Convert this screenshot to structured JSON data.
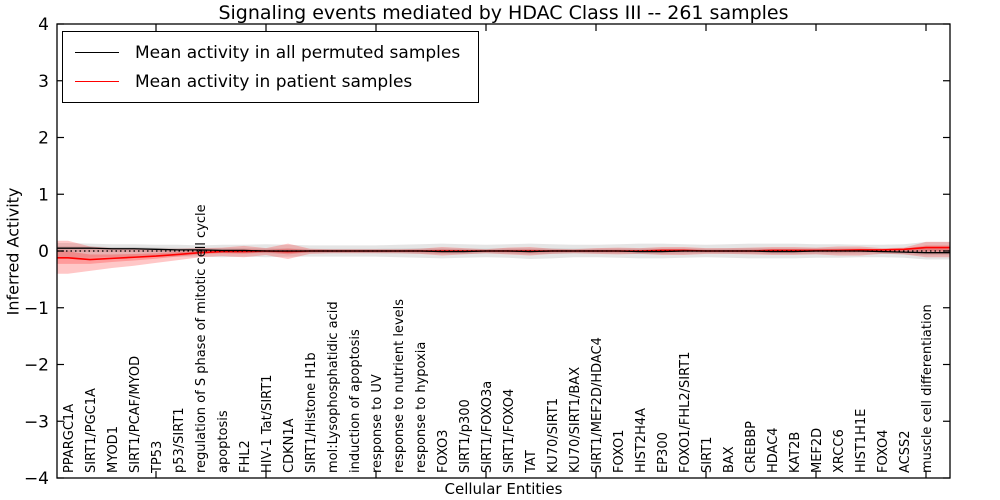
{
  "chart_data": {
    "type": "line",
    "title": "Signaling events mediated by HDAC Class III -- 261 samples",
    "xlabel": "Cellular Entities",
    "ylabel": "Inferred Activity",
    "ylim": [
      -4,
      4
    ],
    "y_ticks": [
      4,
      3,
      2,
      1,
      0,
      -1,
      -2,
      -3,
      -4
    ],
    "grid": false,
    "legend_position": "upper left",
    "zero_line": {
      "y": 0,
      "style": "dotted",
      "color": "#000000"
    },
    "major_tick_indices": [
      4,
      9,
      14,
      19,
      24,
      29,
      34,
      39
    ],
    "categories": [
      "PPARGC1A",
      "SIRT1/PGC1A",
      "MYOD1",
      "SIRT1/PCAF/MYOD",
      "TP53",
      "p53/SIRT1",
      "regulation of S phase of mitotic cell cycle",
      "apoptosis",
      "FHL2",
      "HIV-1 Tat/SIRT1",
      "CDKN1A",
      "SIRT1/Histone H1b",
      "mol:Lysophosphatidic acid",
      "induction of apoptosis",
      "response to UV",
      "response to nutrient levels",
      "response to hypoxia",
      "FOXO3",
      "SIRT1/p300",
      "SIRT1/FOXO3a",
      "SIRT1/FOXO4",
      "TAT",
      "KU70/SIRT1",
      "KU70/SIRT1/BAX",
      "SIRT1/MEF2D/HDAC4",
      "FOXO1",
      "HIST2H4A",
      "EP300",
      "FOXO1/FHL2/SIRT1",
      "SIRT1",
      "BAX",
      "CREBBP",
      "HDAC4",
      "KAT2B",
      "MEF2D",
      "XRCC6",
      "HIST1H1E",
      "FOXO4",
      "ACSS2",
      "muscle cell differentiation"
    ],
    "series": [
      {
        "name": "Mean activity in all permuted samples",
        "color": "#000000",
        "band_color": "rgba(0,0,0,0.10)",
        "values": [
          0.05,
          0.05,
          0.04,
          0.04,
          0.03,
          0.02,
          0.02,
          0.01,
          0.01,
          0.0,
          0.0,
          0.0,
          0.0,
          0.0,
          0.0,
          0.0,
          0.0,
          -0.01,
          -0.01,
          0.0,
          0.0,
          -0.01,
          0.0,
          0.0,
          0.0,
          0.0,
          -0.01,
          -0.01,
          0.0,
          0.0,
          0.0,
          0.0,
          -0.01,
          -0.01,
          0.0,
          0.0,
          0.0,
          -0.01,
          -0.02,
          -0.03
        ],
        "band_upper": [
          0.14,
          0.13,
          0.12,
          0.12,
          0.11,
          0.11,
          0.1,
          0.11,
          0.11,
          0.12,
          0.11,
          0.1,
          0.1,
          0.1,
          0.1,
          0.11,
          0.12,
          0.13,
          0.12,
          0.11,
          0.12,
          0.13,
          0.12,
          0.11,
          0.11,
          0.12,
          0.13,
          0.13,
          0.12,
          0.11,
          0.12,
          0.13,
          0.13,
          0.13,
          0.12,
          0.12,
          0.11,
          0.11,
          0.12,
          0.16
        ],
        "band_lower": [
          -0.12,
          -0.12,
          -0.11,
          -0.11,
          -0.1,
          -0.1,
          -0.1,
          -0.11,
          -0.1,
          -0.11,
          -0.1,
          -0.1,
          -0.1,
          -0.1,
          -0.1,
          -0.11,
          -0.12,
          -0.13,
          -0.12,
          -0.11,
          -0.12,
          -0.14,
          -0.13,
          -0.11,
          -0.11,
          -0.12,
          -0.13,
          -0.13,
          -0.12,
          -0.11,
          -0.12,
          -0.13,
          -0.13,
          -0.13,
          -0.12,
          -0.12,
          -0.11,
          -0.11,
          -0.12,
          -0.15
        ]
      },
      {
        "name": "Mean activity in patient samples",
        "color": "#ff0000",
        "band_color": "rgba(255,0,0,0.22)",
        "values": [
          -0.12,
          -0.15,
          -0.13,
          -0.11,
          -0.09,
          -0.06,
          -0.03,
          -0.01,
          -0.01,
          0.0,
          -0.01,
          0.0,
          0.0,
          0.0,
          0.0,
          0.0,
          0.0,
          0.0,
          0.0,
          0.0,
          0.0,
          0.0,
          0.0,
          0.0,
          0.0,
          0.0,
          0.0,
          0.01,
          0.01,
          0.0,
          0.0,
          0.0,
          0.01,
          0.01,
          0.01,
          0.01,
          0.02,
          0.02,
          0.03,
          0.06
        ],
        "band_upper": [
          0.18,
          0.08,
          0.05,
          0.04,
          0.04,
          0.04,
          0.05,
          0.06,
          0.09,
          0.05,
          0.13,
          0.04,
          0.03,
          0.03,
          0.03,
          0.03,
          0.04,
          0.07,
          0.05,
          0.03,
          0.06,
          0.07,
          0.04,
          0.03,
          0.05,
          0.06,
          0.05,
          0.07,
          0.07,
          0.05,
          0.05,
          0.06,
          0.07,
          0.07,
          0.06,
          0.08,
          0.08,
          0.05,
          0.06,
          0.16
        ],
        "band_lower": [
          -0.4,
          -0.35,
          -0.3,
          -0.26,
          -0.21,
          -0.16,
          -0.11,
          -0.09,
          -0.11,
          -0.07,
          -0.14,
          -0.05,
          -0.04,
          -0.04,
          -0.04,
          -0.04,
          -0.05,
          -0.08,
          -0.06,
          -0.04,
          -0.06,
          -0.08,
          -0.05,
          -0.04,
          -0.05,
          -0.06,
          -0.05,
          -0.07,
          -0.07,
          -0.05,
          -0.05,
          -0.06,
          -0.07,
          -0.07,
          -0.06,
          -0.08,
          -0.08,
          -0.05,
          -0.06,
          -0.11
        ]
      }
    ]
  }
}
